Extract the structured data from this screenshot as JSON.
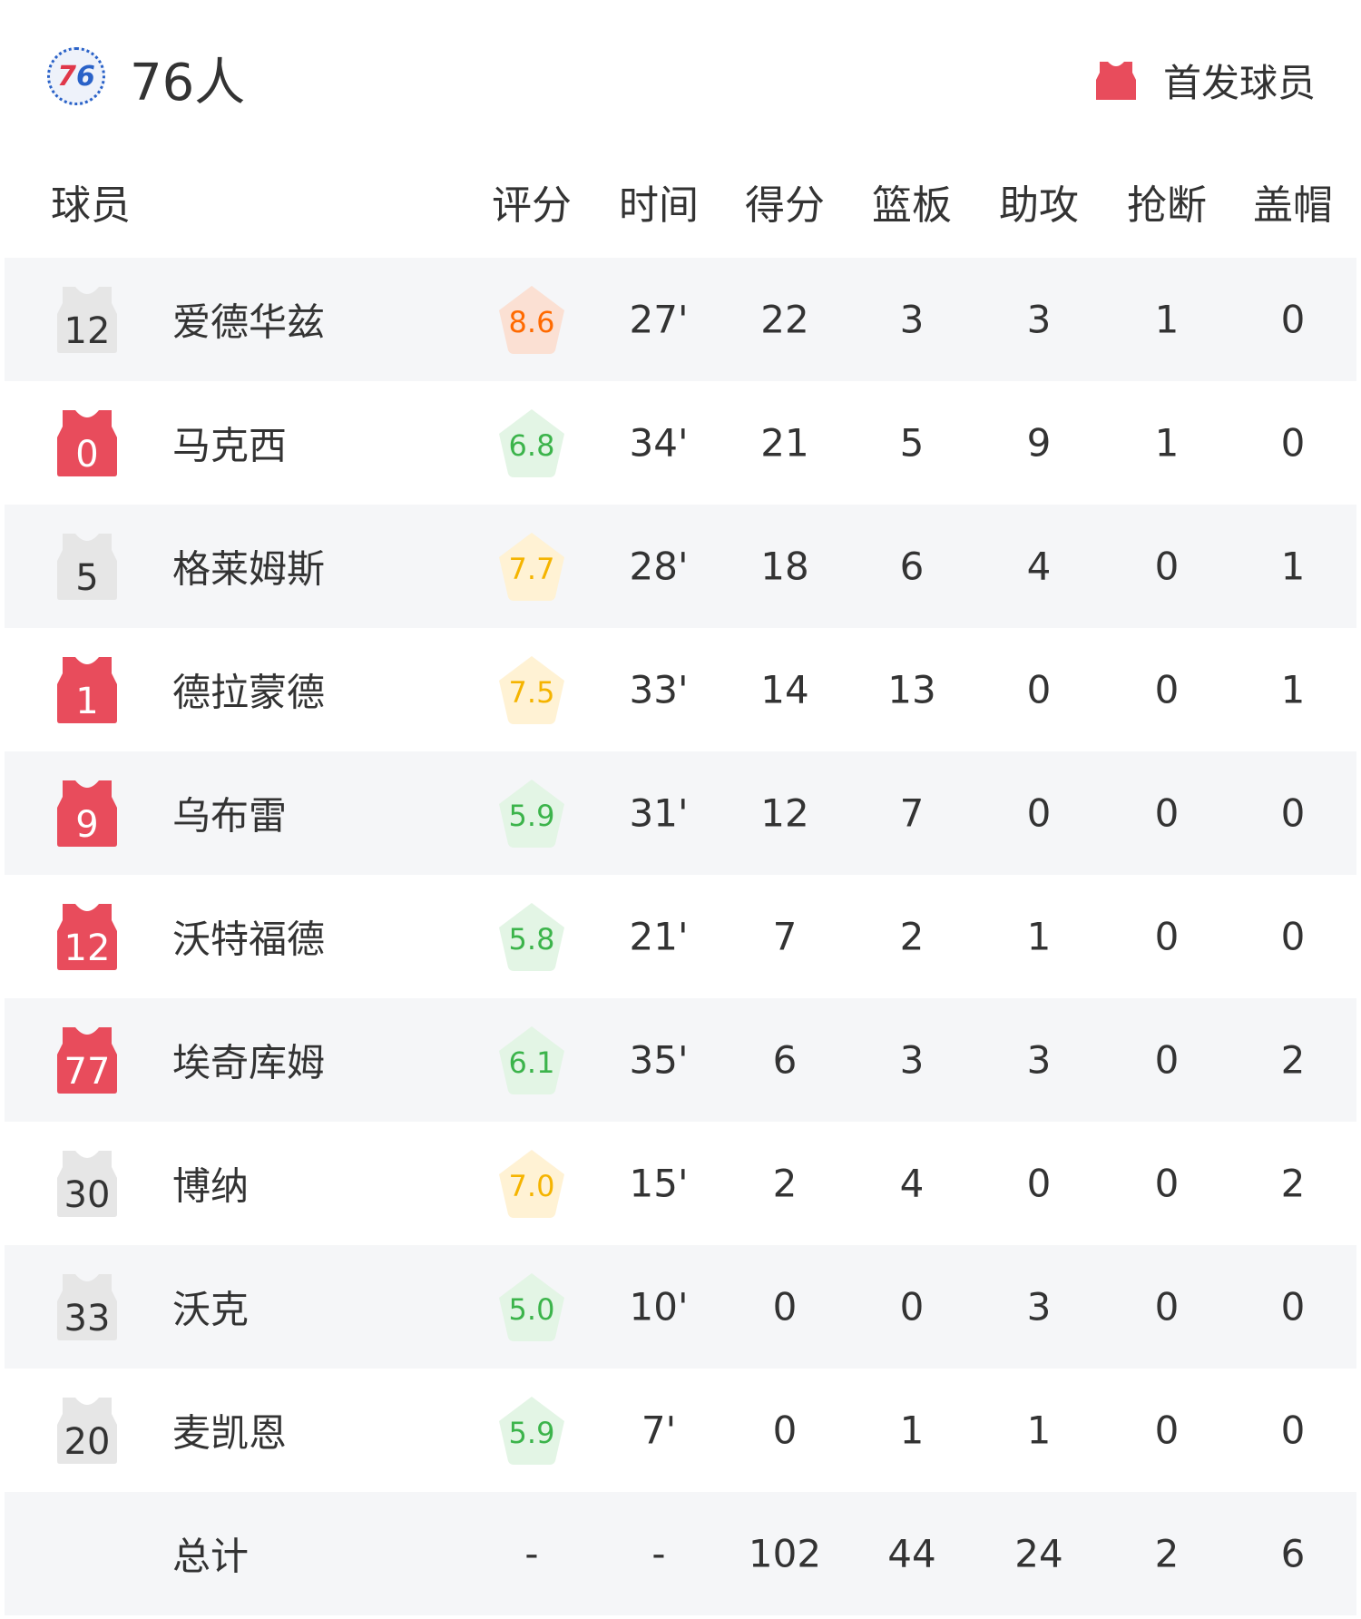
{
  "team": {
    "name": "76人",
    "logo_text": "76ers"
  },
  "legend": {
    "label": "首发球员",
    "color": "#e84c5c"
  },
  "columns": [
    "球员",
    "评分",
    "时间",
    "得分",
    "篮板",
    "助攻",
    "抢断",
    "盖帽"
  ],
  "colors": {
    "starter": "#e84c5c",
    "bench": "#e6e6e6",
    "rating_high": "#ff6a00",
    "rating_mid": "#f5b400",
    "rating_low": "#3cb44b"
  },
  "players": [
    {
      "number": "12",
      "name": "爱德华兹",
      "starter": false,
      "rating": "8.6",
      "min": "27'",
      "pts": "22",
      "reb": "3",
      "ast": "3",
      "stl": "1",
      "blk": "0"
    },
    {
      "number": "0",
      "name": "马克西",
      "starter": true,
      "rating": "6.8",
      "min": "34'",
      "pts": "21",
      "reb": "5",
      "ast": "9",
      "stl": "1",
      "blk": "0"
    },
    {
      "number": "5",
      "name": "格莱姆斯",
      "starter": false,
      "rating": "7.7",
      "min": "28'",
      "pts": "18",
      "reb": "6",
      "ast": "4",
      "stl": "0",
      "blk": "1"
    },
    {
      "number": "1",
      "name": "德拉蒙德",
      "starter": true,
      "rating": "7.5",
      "min": "33'",
      "pts": "14",
      "reb": "13",
      "ast": "0",
      "stl": "0",
      "blk": "1"
    },
    {
      "number": "9",
      "name": "乌布雷",
      "starter": true,
      "rating": "5.9",
      "min": "31'",
      "pts": "12",
      "reb": "7",
      "ast": "0",
      "stl": "0",
      "blk": "0"
    },
    {
      "number": "12",
      "name": "沃特福德",
      "starter": true,
      "rating": "5.8",
      "min": "21'",
      "pts": "7",
      "reb": "2",
      "ast": "1",
      "stl": "0",
      "blk": "0"
    },
    {
      "number": "77",
      "name": "埃奇库姆",
      "starter": true,
      "rating": "6.1",
      "min": "35'",
      "pts": "6",
      "reb": "3",
      "ast": "3",
      "stl": "0",
      "blk": "2"
    },
    {
      "number": "30",
      "name": "博纳",
      "starter": false,
      "rating": "7.0",
      "min": "15'",
      "pts": "2",
      "reb": "4",
      "ast": "0",
      "stl": "0",
      "blk": "2"
    },
    {
      "number": "33",
      "name": "沃克",
      "starter": false,
      "rating": "5.0",
      "min": "10'",
      "pts": "0",
      "reb": "0",
      "ast": "3",
      "stl": "0",
      "blk": "0"
    },
    {
      "number": "20",
      "name": "麦凯恩",
      "starter": false,
      "rating": "5.9",
      "min": "7'",
      "pts": "0",
      "reb": "1",
      "ast": "1",
      "stl": "0",
      "blk": "0"
    }
  ],
  "total": {
    "name": "总计",
    "rating": "-",
    "min": "-",
    "pts": "102",
    "reb": "44",
    "ast": "24",
    "stl": "2",
    "blk": "6"
  }
}
